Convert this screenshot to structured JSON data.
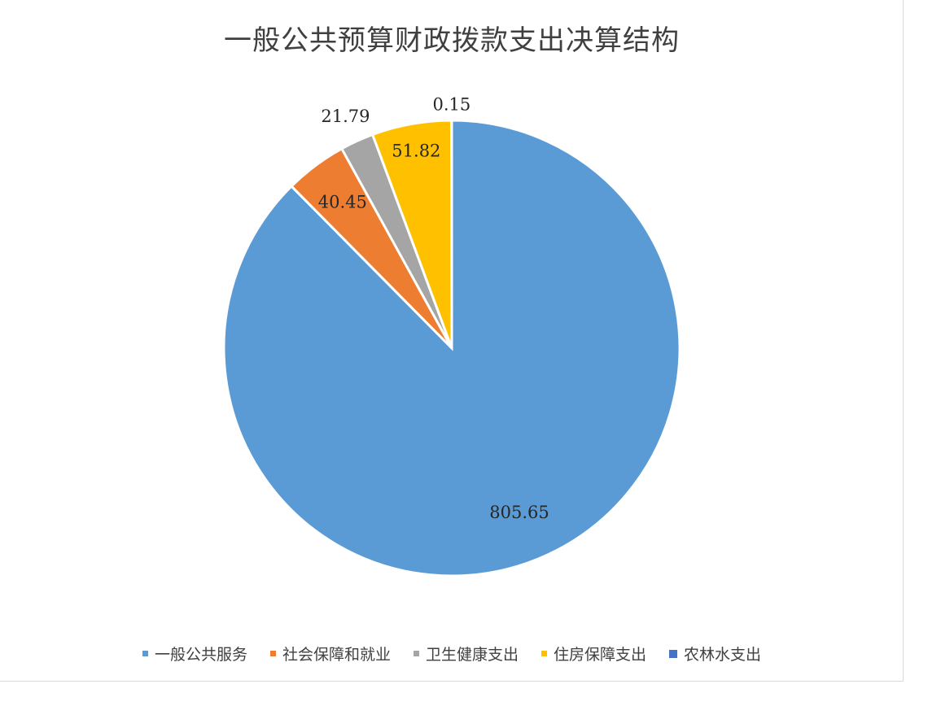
{
  "chart_data": {
    "type": "pie",
    "title": "一般公共预算财政拨款支出决算结构",
    "categories": [
      "一般公共服务",
      "社会保障和就业",
      "卫生健康支出",
      "住房保障支出",
      "农林水支出"
    ],
    "values": [
      805.65,
      40.45,
      21.79,
      51.82,
      0.15
    ],
    "data_labels": [
      "805.65",
      "40.45",
      "21.79",
      "51.82",
      "0.15"
    ],
    "colors": [
      "#5B9BD5",
      "#ED7D31",
      "#A5A5A5",
      "#FFC000",
      "#4472C4"
    ],
    "start_angle": "12 o'clock, clockwise",
    "legend": "bottom"
  }
}
